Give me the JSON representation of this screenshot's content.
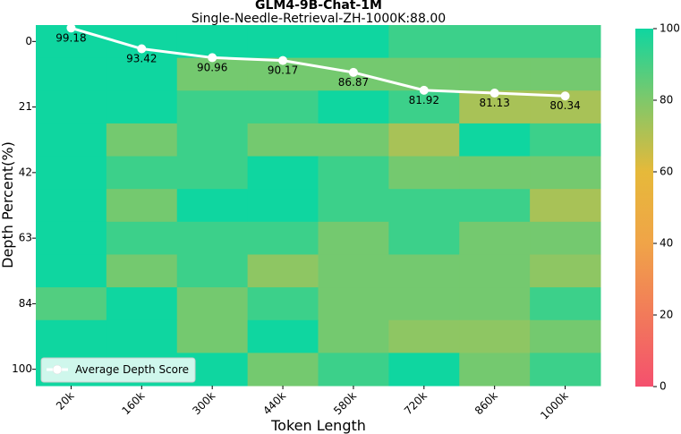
{
  "chart_data": {
    "type": "heatmap",
    "title": "GLM4-9B-Chat-1M",
    "subtitle": "Single-Needle-Retrieval-ZH-1000K:88.00",
    "xlabel": "Token Length",
    "ylabel": "Depth Percent(%)",
    "x_categories": [
      "20k",
      "160k",
      "300k",
      "440k",
      "580k",
      "720k",
      "860k",
      "1000k"
    ],
    "y_tick_labels": [
      "0",
      "21",
      "42",
      "63",
      "84",
      "100"
    ],
    "row_count": 11,
    "cells": [
      [
        100,
        100,
        100,
        100,
        100,
        92,
        92,
        92
      ],
      [
        100,
        100,
        82,
        82,
        82,
        82,
        82,
        82
      ],
      [
        100,
        100,
        92,
        92,
        100,
        92,
        72,
        72
      ],
      [
        100,
        82,
        92,
        82,
        82,
        72,
        100,
        92
      ],
      [
        100,
        92,
        92,
        100,
        92,
        82,
        82,
        82
      ],
      [
        100,
        82,
        100,
        100,
        92,
        92,
        92,
        72
      ],
      [
        100,
        92,
        92,
        92,
        82,
        92,
        82,
        82
      ],
      [
        100,
        82,
        92,
        77,
        82,
        82,
        82,
        77
      ],
      [
        88,
        100,
        82,
        92,
        82,
        82,
        82,
        92
      ],
      [
        100,
        100,
        82,
        100,
        82,
        77,
        77,
        82
      ],
      [
        100,
        100,
        100,
        82,
        92,
        100,
        82,
        92
      ]
    ],
    "colorbar": {
      "min": 0,
      "max": 100,
      "ticks": [
        0,
        20,
        40,
        60,
        80,
        100
      ]
    },
    "line_series": {
      "name": "Average Depth Score",
      "values": [
        99.18,
        93.42,
        90.96,
        90.17,
        86.87,
        81.92,
        81.13,
        80.34
      ]
    },
    "legend_position": "lower-left"
  }
}
